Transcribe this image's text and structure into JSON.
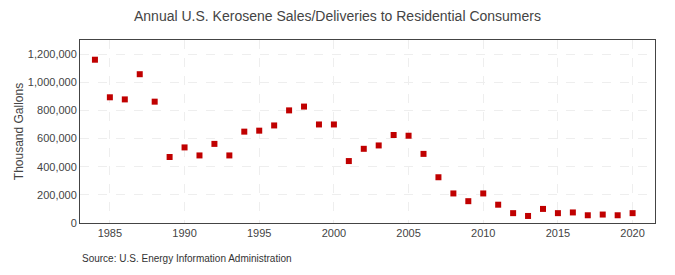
{
  "chart_data": {
    "type": "scatter",
    "title": "Annual U.S. Kerosene Sales/Deliveries to Residential Consumers",
    "ylabel": "Thousand Gallons",
    "annotations": [
      "Source: U.S. Energy Information Administration"
    ],
    "x": [
      1984,
      1985,
      1986,
      1987,
      1988,
      1989,
      1990,
      1991,
      1992,
      1993,
      1994,
      1995,
      1996,
      1997,
      1998,
      1999,
      2000,
      2001,
      2002,
      2003,
      2004,
      2005,
      2006,
      2007,
      2008,
      2009,
      2010,
      2011,
      2012,
      2013,
      2014,
      2015,
      2016,
      2017,
      2018,
      2019,
      2020
    ],
    "values": [
      1160000,
      893000,
      878000,
      1057000,
      862000,
      469000,
      537000,
      480000,
      562000,
      480000,
      649000,
      656000,
      693000,
      800000,
      827000,
      700000,
      700000,
      440000,
      527000,
      551000,
      625000,
      620000,
      491000,
      325000,
      210000,
      155000,
      210000,
      130000,
      70000,
      50000,
      100000,
      70000,
      75000,
      55000,
      60000,
      55000,
      70000
    ],
    "color": "#c00000",
    "marker": "square",
    "xlim": [
      1983,
      2021.5
    ],
    "ylim": [
      0,
      1300000
    ],
    "xticks": [
      1985,
      1990,
      1995,
      2000,
      2005,
      2010,
      2015,
      2020
    ],
    "yticks": [
      0,
      {
        "value": 200000,
        "label": "200,000"
      },
      {
        "value": 400000,
        "label": "400,000"
      },
      {
        "value": 600000,
        "label": "600,000"
      },
      {
        "value": 800000,
        "label": "800,000"
      },
      {
        "value": 1000000,
        "label": "1,000,000"
      },
      {
        "value": 1200000,
        "label": "1,200,000"
      }
    ],
    "grid": true
  }
}
